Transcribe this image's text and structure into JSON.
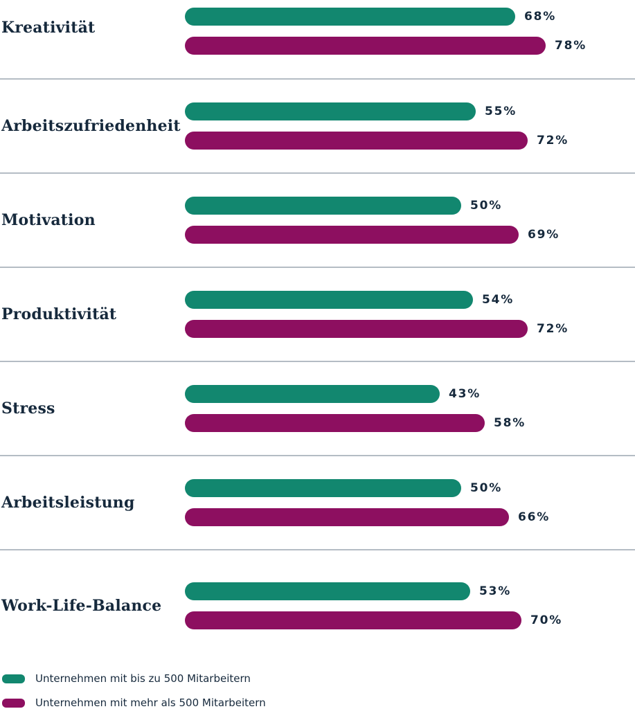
{
  "chart_data": {
    "type": "bar",
    "orientation": "horizontal",
    "title": "",
    "categories": [
      "Kreativität",
      "Arbeitszufriedenheit",
      "Motivation",
      "Produktivität",
      "Stress",
      "Arbeitsleistung",
      "Work-Life-Balance"
    ],
    "series": [
      {
        "name": "Unternehmen mit bis zu 500 Mitarbeitern",
        "color": "#12876F",
        "values": [
          68,
          55,
          50,
          54,
          43,
          50,
          53
        ]
      },
      {
        "name": "Unternehmen mit mehr als 500 Mitarbeitern",
        "color": "#8D0F60",
        "values": [
          78,
          72,
          69,
          72,
          58,
          66,
          70
        ]
      }
    ],
    "value_labels": [
      [
        "68%",
        "78%"
      ],
      [
        "55%",
        "72%"
      ],
      [
        "50%",
        "69%"
      ],
      [
        "54%",
        "72%"
      ],
      [
        "43%",
        "58%"
      ],
      [
        "50%",
        "66%"
      ],
      [
        "53%",
        "70%"
      ]
    ],
    "value_suffix": "%",
    "xlim": [
      0,
      100
    ],
    "grid": "row-separator-lines",
    "legend_position": "bottom-left"
  },
  "legend": {
    "items": [
      {
        "label": "Unternehmen mit bis zu 500 Mitarbeitern",
        "color": "#12876F"
      },
      {
        "label": "Unternehmen mit mehr als 500 Mitarbeitern",
        "color": "#8D0F60"
      }
    ]
  },
  "colors": {
    "background": "#FFFFFF",
    "text": "#16293C",
    "separator": "#B4BCC4",
    "series_small_companies": "#12876F",
    "series_large_companies": "#8D0F60"
  }
}
